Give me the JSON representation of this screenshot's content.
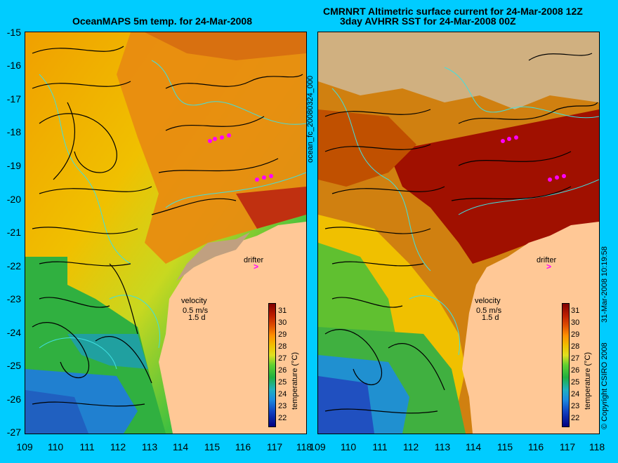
{
  "titles": {
    "left": "OceanMAPS 5m temp. for 24-Mar-2008",
    "right_line1": "CMRNRT Altimetric surface current for 24-Mar-2008 12Z",
    "right_line2": "3day AVHRR SST for 24-Mar-2008 00Z"
  },
  "side_labels": {
    "forecast_id": "ocean_fc_20080324_000",
    "timestamp": "31-Mar-2008 10:19:58",
    "copyright": "© Copyright CSIRO 2008"
  },
  "axes": {
    "lat_ticks": [
      "-15",
      "-16",
      "-17",
      "-18",
      "-19",
      "-20",
      "-21",
      "-22",
      "-23",
      "-24",
      "-25",
      "-26",
      "-27"
    ],
    "lon_ticks": [
      "109",
      "110",
      "111",
      "112",
      "113",
      "114",
      "115",
      "116",
      "117",
      "118"
    ]
  },
  "map_labels": {
    "drifter": "drifter",
    "drifter_marker": ">",
    "velocity": "velocity",
    "velocity_scale": "0.5 m/s",
    "velocity_days": "1.5 d"
  },
  "colorbar": {
    "title": "temperature (°C)",
    "ticks": [
      "31",
      "30",
      "29",
      "28",
      "27",
      "26",
      "25",
      "24",
      "23",
      "22"
    ],
    "colors": [
      "#000080",
      "#1040c0",
      "#1c8ce0",
      "#20b0c0",
      "#20b040",
      "#60d030",
      "#e0e020",
      "#f0c000",
      "#ff9000",
      "#e05000",
      "#c02000",
      "#800000"
    ]
  },
  "land_color": "#ffc896"
}
